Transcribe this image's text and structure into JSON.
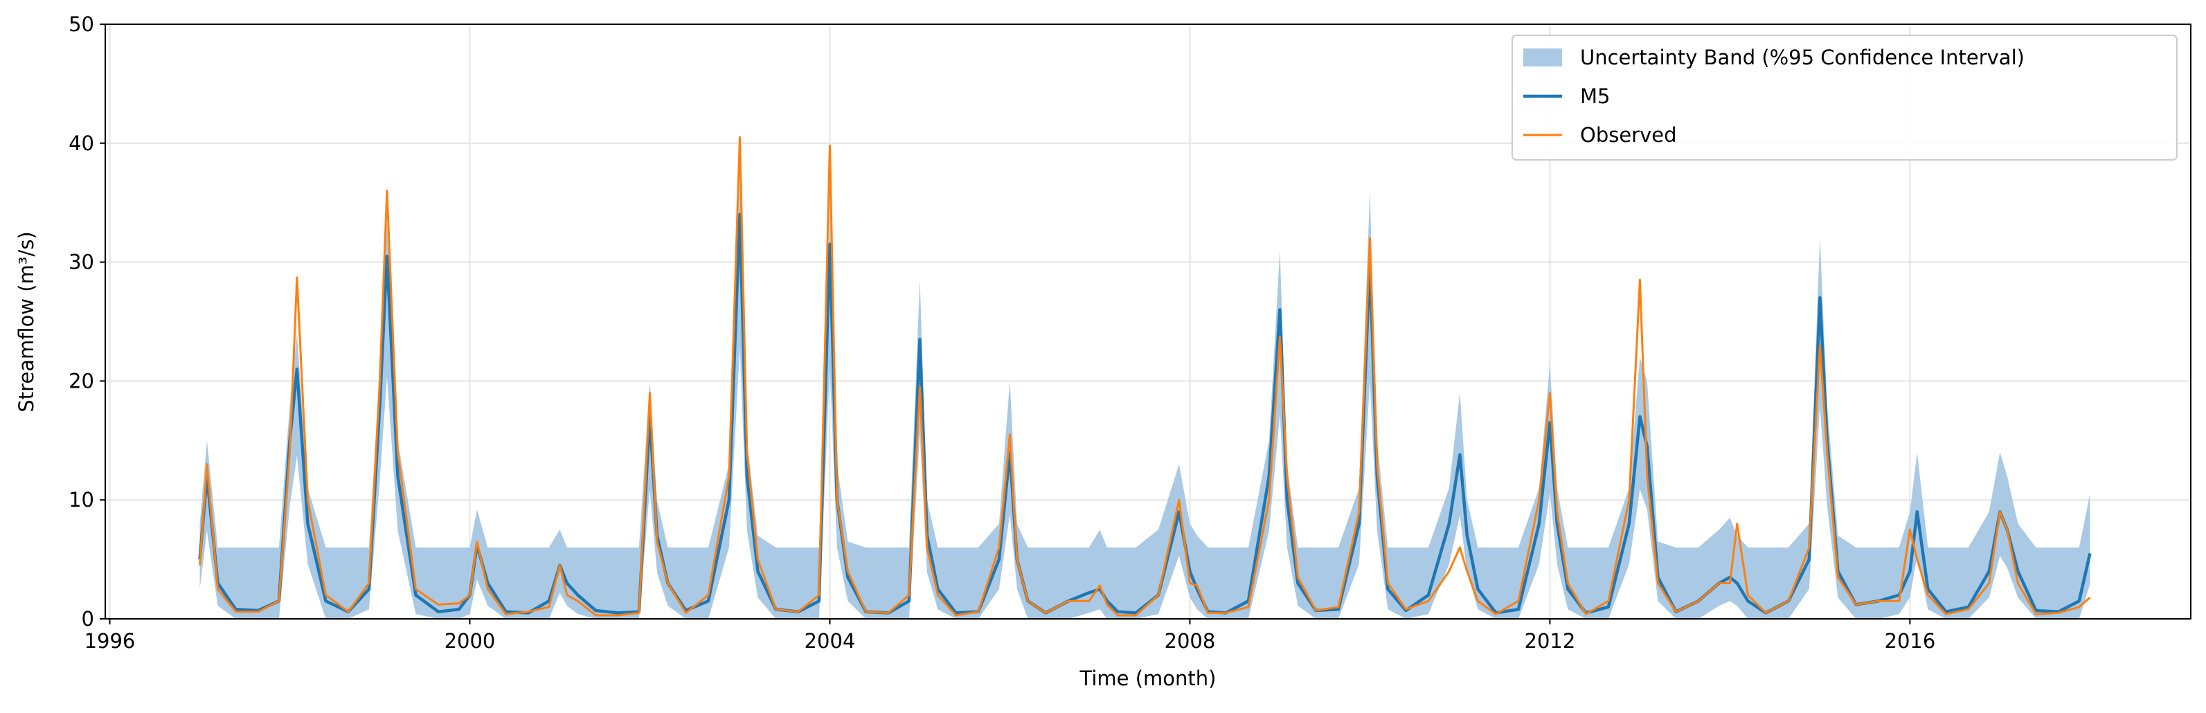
{
  "chart_data": {
    "type": "line",
    "xlabel": "Time (month)",
    "ylabel": "Streamflow (m³/s)",
    "xlim": [
      1995.95,
      2019.12
    ],
    "xticks": [
      1996,
      2000,
      2004,
      2008,
      2012,
      2016
    ],
    "ylim": [
      0,
      50
    ],
    "yticks": [
      0,
      10,
      20,
      30,
      40,
      50
    ],
    "grid": true,
    "legend": "upper right",
    "x": [
      1997,
      1997.08,
      1997.2,
      1997.4,
      1997.65,
      1997.88,
      1998,
      1998.08,
      1998.2,
      1998.4,
      1998.65,
      1998.88,
      1999,
      1999.08,
      1999.2,
      1999.4,
      1999.65,
      1999.88,
      2000,
      2000.08,
      2000.2,
      2000.4,
      2000.65,
      2000.88,
      2001,
      2001.08,
      2001.2,
      2001.4,
      2001.65,
      2001.88,
      2002,
      2002.08,
      2002.2,
      2002.4,
      2002.65,
      2002.88,
      2003,
      2003.08,
      2003.2,
      2003.4,
      2003.65,
      2003.88,
      2004,
      2004.08,
      2004.2,
      2004.4,
      2004.65,
      2004.88,
      2005,
      2005.08,
      2005.2,
      2005.4,
      2005.65,
      2005.88,
      2006,
      2006.08,
      2006.2,
      2006.4,
      2006.65,
      2006.88,
      2007,
      2007.08,
      2007.2,
      2007.4,
      2007.65,
      2007.88,
      2008,
      2008.08,
      2008.2,
      2008.4,
      2008.65,
      2008.88,
      2009,
      2009.08,
      2009.2,
      2009.4,
      2009.65,
      2009.88,
      2010,
      2010.08,
      2010.2,
      2010.4,
      2010.65,
      2010.88,
      2011,
      2011.08,
      2011.2,
      2011.4,
      2011.65,
      2011.88,
      2012,
      2012.08,
      2012.2,
      2012.4,
      2012.65,
      2012.88,
      2013,
      2013.08,
      2013.2,
      2013.4,
      2013.65,
      2013.88,
      2014,
      2014.08,
      2014.2,
      2014.4,
      2014.65,
      2014.88,
      2015,
      2015.08,
      2015.2,
      2015.4,
      2015.65,
      2015.88,
      2016,
      2016.08,
      2016.2,
      2016.4,
      2016.65,
      2016.88,
      2017,
      2017.08,
      2017.2,
      2017.4,
      2017.65,
      2017.88,
      2018
    ],
    "series": [
      {
        "name": "Uncertainty Band (%95 Confidence Interval)",
        "color": "#a9c9e5",
        "lower": [
          2.5,
          7.4,
          1.1,
          0,
          0,
          0,
          9.5,
          13.7,
          4.6,
          0,
          0,
          0.8,
          11.6,
          20.4,
          7.4,
          0.4,
          0,
          0,
          0.4,
          3.3,
          1.1,
          0,
          0,
          0,
          2.2,
          1.1,
          0.4,
          0,
          0,
          0,
          10.9,
          3.9,
          1.1,
          0,
          0,
          6,
          22.8,
          7.4,
          1.8,
          0,
          0,
          0,
          21.1,
          6,
          1.5,
          0,
          0,
          0,
          15.5,
          3.9,
          0.8,
          0,
          0,
          2.5,
          8.8,
          2.5,
          0,
          0,
          0,
          0.5,
          0.8,
          0,
          0,
          0,
          0.4,
          5.3,
          1.8,
          0.8,
          0,
          0,
          0,
          7.4,
          17.2,
          6,
          1.1,
          0,
          0,
          4.6,
          20,
          7.4,
          0.8,
          0,
          0.4,
          4.6,
          8.7,
          3.9,
          0.8,
          0,
          0,
          4.6,
          10.6,
          4.6,
          0.8,
          0,
          0,
          4.6,
          10.9,
          9.2,
          1.5,
          0,
          0,
          1.1,
          1.5,
          1.1,
          0,
          0,
          0,
          2.5,
          17.9,
          9.5,
          1.8,
          0,
          0,
          0.4,
          1.8,
          5.3,
          0.8,
          0,
          0,
          1.8,
          5.3,
          4.3,
          1.8,
          0,
          0,
          0,
          2.9
        ],
        "upper": [
          8,
          15,
          6,
          6,
          6,
          6,
          18,
          24,
          11,
          6,
          6,
          6,
          21,
          33.5,
          15,
          6,
          6,
          6,
          6,
          9.2,
          6,
          6,
          6,
          6,
          7.5,
          6,
          6,
          6,
          6,
          6,
          20,
          10,
          6,
          6,
          6,
          13,
          37,
          15,
          7,
          6,
          6,
          6,
          34.5,
          13,
          6.5,
          6,
          6,
          6,
          28.5,
          10,
          6,
          6,
          6,
          8,
          20,
          8,
          6,
          6,
          6,
          6,
          7.5,
          6,
          6,
          6,
          7.5,
          13,
          8,
          7,
          6,
          6,
          6,
          15,
          31,
          13,
          6,
          6,
          6,
          11,
          36,
          15,
          6,
          6,
          6,
          11,
          19,
          10,
          6,
          6,
          6,
          11,
          21.5,
          11,
          6,
          6,
          6,
          11,
          22,
          20,
          6.5,
          6,
          6,
          7.5,
          8.5,
          7,
          6,
          6,
          6,
          8,
          32,
          18,
          7,
          6,
          6,
          6,
          9,
          14,
          6,
          6,
          6,
          9,
          14,
          12,
          8,
          6,
          6,
          6,
          10.5
        ]
      },
      {
        "name": "M5",
        "color": "#1f77b4",
        "values": [
          5,
          12,
          3,
          0.8,
          0.7,
          1.5,
          15,
          21,
          8,
          1.5,
          0.6,
          2.5,
          18,
          30.5,
          12,
          2,
          0.6,
          0.8,
          2,
          6.2,
          3,
          0.6,
          0.5,
          1.5,
          4.5,
          3,
          2,
          0.7,
          0.5,
          0.6,
          17,
          7,
          3,
          0.7,
          1.5,
          10,
          34,
          12,
          4,
          0.8,
          0.6,
          1.5,
          31.5,
          10,
          3.5,
          0.6,
          0.5,
          1.5,
          23.5,
          7,
          2.5,
          0.5,
          0.6,
          5,
          14,
          5,
          1.5,
          0.5,
          1.5,
          2.2,
          2.5,
          1.5,
          0.6,
          0.5,
          2,
          9,
          4,
          2.5,
          0.6,
          0.5,
          1.5,
          12,
          26,
          10,
          3,
          0.7,
          0.8,
          8,
          30,
          12,
          2.5,
          0.7,
          2,
          8,
          13.8,
          7,
          2.5,
          0.5,
          0.8,
          8,
          16.5,
          8,
          2.5,
          0.5,
          1,
          8,
          17,
          14.5,
          3.5,
          0.6,
          1.5,
          3,
          3.5,
          3,
          1.5,
          0.5,
          1.5,
          5,
          27,
          15,
          4,
          1.2,
          1.5,
          2,
          4,
          9,
          2.5,
          0.6,
          1,
          4,
          9,
          7.5,
          4,
          0.7,
          0.6,
          1.5,
          5.5
        ]
      },
      {
        "name": "Observed",
        "color": "#ff7f0e",
        "values": [
          4.5,
          13,
          2.5,
          0.6,
          0.6,
          1.5,
          14,
          28.7,
          10,
          2,
          0.6,
          3,
          20,
          36,
          14,
          2.5,
          1.2,
          1.3,
          2,
          6.5,
          2.5,
          0.4,
          0.6,
          1,
          4.5,
          2,
          1.5,
          0.3,
          0.3,
          0.5,
          19,
          6.5,
          3,
          0.5,
          2,
          12,
          40.5,
          14,
          5,
          0.8,
          0.6,
          2,
          39.8,
          10,
          4,
          0.6,
          0.5,
          2,
          19.5,
          6,
          2,
          0.3,
          0.6,
          6,
          15.5,
          5,
          1.5,
          0.5,
          1.5,
          1.5,
          2.8,
          1.2,
          0.3,
          0.3,
          2,
          10,
          3,
          2.8,
          0.5,
          0.5,
          1,
          10,
          23.7,
          12,
          3.5,
          0.7,
          1,
          9,
          32,
          13,
          3,
          0.8,
          1.5,
          4,
          6,
          4,
          1.5,
          0.4,
          1.5,
          10,
          19,
          9,
          3,
          0.4,
          1.5,
          10,
          28.5,
          12,
          3,
          0.6,
          1.5,
          3,
          3,
          8,
          2,
          0.5,
          1.5,
          6,
          23,
          14,
          3.5,
          1.2,
          1.5,
          1.5,
          7.5,
          5,
          2,
          0.4,
          0.8,
          3,
          9,
          7.5,
          3,
          0.4,
          0.5,
          1,
          1.8
        ]
      }
    ]
  }
}
